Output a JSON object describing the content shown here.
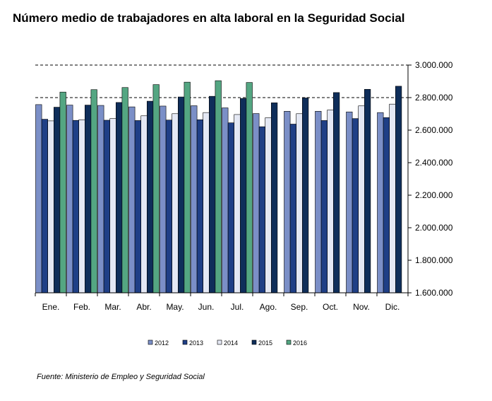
{
  "title": "Número medio de trabajadores en alta laboral en la Seguridad Social",
  "source": "Fuente: Ministerio de Empleo y Seguridad Social",
  "chart_data": {
    "type": "bar",
    "categories": [
      "Ene.",
      "Feb.",
      "Mar.",
      "Abr.",
      "May.",
      "Jun.",
      "Jul.",
      "Ago.",
      "Sep.",
      "Oct.",
      "Nov.",
      "Dic."
    ],
    "series": [
      {
        "name": "2012",
        "color": "#7B8FC7",
        "values": [
          2757000,
          2754000,
          2752000,
          2743000,
          2748000,
          2750000,
          2737000,
          2702000,
          2716000,
          2716000,
          2712000,
          2708000
        ]
      },
      {
        "name": "2013",
        "color": "#1F3F86",
        "values": [
          2667000,
          2660000,
          2661000,
          2659000,
          2662000,
          2664000,
          2645000,
          2621000,
          2637000,
          2659000,
          2671000,
          2677000
        ]
      },
      {
        "name": "2014",
        "color": "#E4E8F4",
        "values": [
          2657000,
          2664000,
          2671000,
          2688000,
          2701000,
          2708000,
          2696000,
          2676000,
          2701000,
          2724000,
          2749000,
          2760000
        ]
      },
      {
        "name": "2015",
        "color": "#0F2E5A",
        "values": [
          2741000,
          2754000,
          2770000,
          2778000,
          2804000,
          2808000,
          2795000,
          2768000,
          2798000,
          2831000,
          2851000,
          2870000
        ]
      },
      {
        "name": "2016",
        "color": "#54A682",
        "values": [
          2834000,
          2849000,
          2862000,
          2880000,
          2895000,
          2904000,
          2893000,
          null,
          null,
          null,
          null,
          null
        ]
      }
    ],
    "y_ticks": [
      "1.600.000",
      "1.800.000",
      "2.000.000",
      "2.200.000",
      "2.400.000",
      "2.600.000",
      "2.800.000",
      "3.000.000"
    ],
    "ylim": [
      1600000,
      3000000
    ],
    "grid": "dashed horizontal at 2.800.000 and 3.000.000",
    "legend_position": "bottom"
  }
}
